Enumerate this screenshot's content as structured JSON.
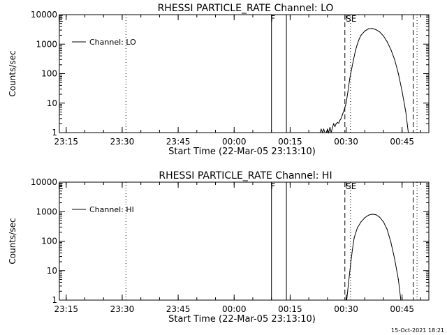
{
  "chart_data": [
    {
      "type": "line",
      "title": "RHESSI PARTICLE_RATE Channel: LO",
      "xlabel": "Start Time (22-Mar-05 23:13:10)",
      "ylabel": "Counts/sec",
      "yscale": "log",
      "ylim": [
        1,
        10000
      ],
      "yticks": [
        1,
        10,
        100,
        1000,
        10000
      ],
      "ytick_labels": [
        "1",
        "10",
        "100",
        "1000",
        "10000"
      ],
      "xlim": [
        "23:13:10",
        "00:52:10"
      ],
      "xticks": [
        "23:15",
        "23:30",
        "23:45",
        "00:00",
        "00:15",
        "00:30",
        "00:45"
      ],
      "legend": {
        "position": "top-left",
        "entries": [
          "Channel: LO"
        ]
      },
      "grid": false,
      "flag_labels": [
        "F",
        "SE"
      ],
      "series": [
        {
          "name": "Channel: LO",
          "x": [
            "00:23:00",
            "00:23:20",
            "00:23:40",
            "00:24:00",
            "00:24:20",
            "00:24:40",
            "00:25:00",
            "00:25:20",
            "00:25:40",
            "00:26:00",
            "00:26:20",
            "00:26:40",
            "00:27:00",
            "00:27:20",
            "00:27:40",
            "00:28:00",
            "00:28:20",
            "00:28:40",
            "00:29:00",
            "00:29:30",
            "00:30:00",
            "00:30:30",
            "00:31:00",
            "00:31:30",
            "00:32:00",
            "00:32:30",
            "00:33:00",
            "00:33:30",
            "00:34:00",
            "00:35:00",
            "00:36:00",
            "00:37:00",
            "00:38:00",
            "00:39:00",
            "00:40:00",
            "00:41:00",
            "00:42:00",
            "00:43:00",
            "00:44:00",
            "00:45:00",
            "00:46:00",
            "00:46:40"
          ],
          "values": [
            1,
            1.3,
            1,
            1.3,
            1,
            1,
            1.3,
            1,
            1.5,
            1,
            1.5,
            2,
            1.6,
            2,
            2.2,
            2.1,
            2.6,
            3,
            4,
            6,
            10,
            25,
            70,
            150,
            300,
            600,
            1000,
            1500,
            2000,
            2800,
            3300,
            3400,
            3100,
            2600,
            1900,
            1200,
            650,
            300,
            100,
            25,
            5,
            1
          ]
        }
      ],
      "markers": [
        {
          "kind": "solid",
          "time": "00:10:00",
          "label": "F"
        },
        {
          "kind": "solid",
          "time": "00:14:00",
          "label": ""
        },
        {
          "kind": "dotted",
          "time": "23:31:00",
          "label": ""
        },
        {
          "kind": "dashed",
          "time": "00:29:40",
          "label": ""
        },
        {
          "kind": "dotted",
          "time": "00:31:10",
          "label": "SE"
        },
        {
          "kind": "dashed",
          "time": "00:48:00",
          "label": ""
        },
        {
          "kind": "dotted",
          "time": "00:49:00",
          "label": ""
        }
      ]
    },
    {
      "type": "line",
      "title": "RHESSI PARTICLE_RATE Channel: HI",
      "xlabel": "Start Time (22-Mar-05 23:13:10)",
      "ylabel": "Counts/sec",
      "yscale": "log",
      "ylim": [
        1,
        10000
      ],
      "yticks": [
        1,
        10,
        100,
        1000,
        10000
      ],
      "ytick_labels": [
        "1",
        "10",
        "100",
        "1000",
        "10000"
      ],
      "xlim": [
        "23:13:10",
        "00:52:10"
      ],
      "xticks": [
        "23:15",
        "23:30",
        "23:45",
        "00:00",
        "00:15",
        "00:30",
        "00:45"
      ],
      "legend": {
        "position": "top-left",
        "entries": [
          "Channel: HI"
        ]
      },
      "grid": false,
      "flag_labels": [
        "F",
        "SE"
      ],
      "series": [
        {
          "name": "Channel: HI",
          "x": [
            "00:30:10",
            "00:30:40",
            "00:31:10",
            "00:31:40",
            "00:32:10",
            "00:33:00",
            "00:34:00",
            "00:35:00",
            "00:36:00",
            "00:37:00",
            "00:38:00",
            "00:39:00",
            "00:40:00",
            "00:41:00",
            "00:42:00",
            "00:43:00",
            "00:44:00",
            "00:44:40"
          ],
          "values": [
            1,
            4,
            15,
            50,
            130,
            280,
            450,
            620,
            760,
            820,
            790,
            650,
            450,
            250,
            90,
            25,
            5,
            1
          ]
        }
      ],
      "markers": [
        {
          "kind": "solid",
          "time": "00:10:00",
          "label": "F"
        },
        {
          "kind": "solid",
          "time": "00:14:00",
          "label": ""
        },
        {
          "kind": "dotted",
          "time": "23:31:00",
          "label": ""
        },
        {
          "kind": "dashed",
          "time": "00:29:40",
          "label": ""
        },
        {
          "kind": "dotted",
          "time": "00:31:10",
          "label": "SE"
        },
        {
          "kind": "dashed",
          "time": "00:48:00",
          "label": ""
        },
        {
          "kind": "dotted",
          "time": "00:49:00",
          "label": ""
        }
      ]
    }
  ],
  "footer": {
    "timestamp": "15-Oct-2021 18:21"
  }
}
